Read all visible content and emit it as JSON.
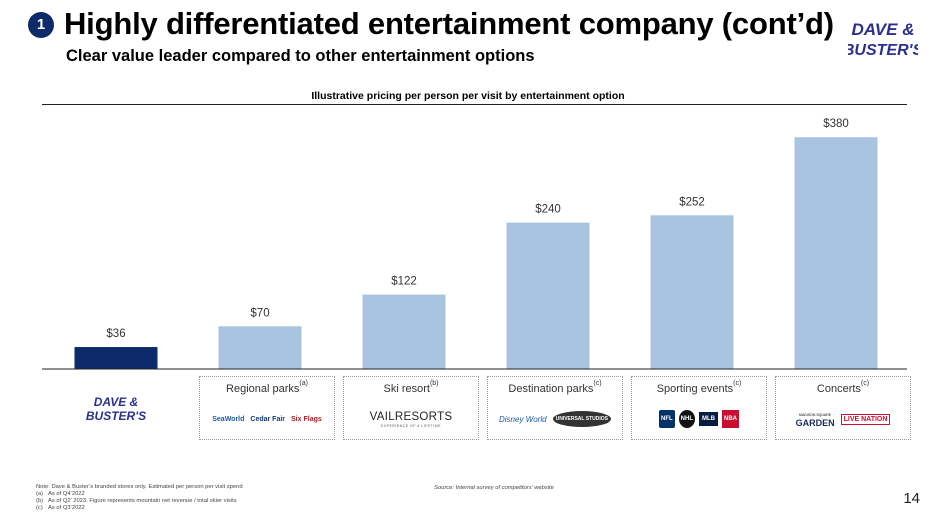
{
  "header": {
    "section_number": "1",
    "title": "Highly differentiated entertainment company (cont’d)",
    "subtitle": "Clear value leader compared to other entertainment options",
    "brand_line1": "DAVE &",
    "brand_line2": "BUSTER'S"
  },
  "chart_data": {
    "type": "bar",
    "title": "Illustrative pricing per person per visit by entertainment option",
    "categories": [
      "Dave & Buster's",
      "Regional parks",
      "Ski resort",
      "Destination parks",
      "Sporting events",
      "Concerts"
    ],
    "values": [
      36,
      70,
      122,
      240,
      252,
      380
    ],
    "value_labels": [
      "$36",
      "$70",
      "$122",
      "$240",
      "$252",
      "$380"
    ],
    "footnote_refs": [
      "",
      "(a)",
      "(b)",
      "(c)",
      "(c)",
      "(c)"
    ],
    "ylim": [
      0,
      400
    ],
    "xlabel": "",
    "ylabel": "",
    "colors": {
      "highlight": "#0d2a6b",
      "other": "#a9c4e0"
    }
  },
  "logos": {
    "regional": [
      "SeaWorld",
      "Cedar Fair",
      "Six Flags"
    ],
    "ski": {
      "name": "VAILRESORTS",
      "tagline": "EXPERIENCE OF A LIFETIME"
    },
    "destination": [
      "Disney World",
      "UNIVERSAL STUDIOS"
    ],
    "sporting": [
      "NFL",
      "NHL",
      "MLB",
      "NBA"
    ],
    "concerts": [
      "MADISON SQUARE",
      "GARDEN",
      "LIVE NATION"
    ]
  },
  "footnotes": {
    "note": "Note: Dave & Buster’s branded stores only. Estimated per person per visit spend",
    "items": [
      {
        "tag": "(a)",
        "text": "As of Q4’2022"
      },
      {
        "tag": "(b)",
        "text": "As of Q2’ 2023. Figure represents mountain net revenue / total skier visits"
      },
      {
        "tag": "(c)",
        "text": "As of Q3’2022"
      }
    ],
    "source": "Source: Internal survey of competitors’ website"
  },
  "page_number": "14"
}
